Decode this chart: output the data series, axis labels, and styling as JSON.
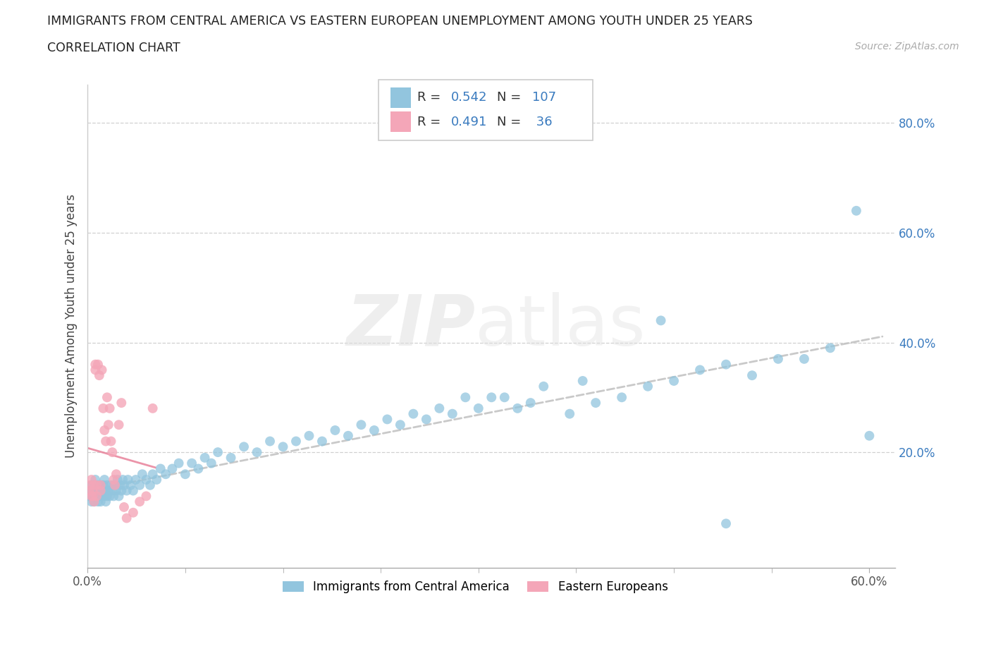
{
  "title": "IMMIGRANTS FROM CENTRAL AMERICA VS EASTERN EUROPEAN UNEMPLOYMENT AMONG YOUTH UNDER 25 YEARS",
  "subtitle": "CORRELATION CHART",
  "source": "Source: ZipAtlas.com",
  "ylabel": "Unemployment Among Youth under 25 years",
  "legend_label_1": "Immigrants from Central America",
  "legend_label_2": "Eastern Europeans",
  "r1": 0.542,
  "n1": 107,
  "r2": 0.491,
  "n2": 36,
  "color_blue": "#92c5de",
  "color_pink": "#f4a6b8",
  "text_color": "#3a7bbf",
  "label_color": "#333333",
  "trendline_blue_color": "#c0c0c0",
  "trendline_pink_color": "#e8829a",
  "xlim": [
    0.0,
    0.62
  ],
  "ylim": [
    -0.01,
    0.87
  ],
  "xtick_vals": [
    0.0,
    0.6
  ],
  "xtick_labels": [
    "0.0%",
    "60.0%"
  ],
  "ytick_vals": [
    0.2,
    0.4,
    0.6,
    0.8
  ],
  "ytick_labels": [
    "20.0%",
    "40.0%",
    "60.0%",
    "80.0%"
  ],
  "blue_x": [
    0.001,
    0.002,
    0.003,
    0.003,
    0.004,
    0.004,
    0.005,
    0.005,
    0.006,
    0.006,
    0.007,
    0.007,
    0.008,
    0.008,
    0.009,
    0.009,
    0.01,
    0.01,
    0.011,
    0.011,
    0.012,
    0.012,
    0.013,
    0.013,
    0.014,
    0.014,
    0.015,
    0.015,
    0.016,
    0.017,
    0.018,
    0.019,
    0.02,
    0.021,
    0.022,
    0.023,
    0.024,
    0.025,
    0.026,
    0.027,
    0.028,
    0.03,
    0.031,
    0.033,
    0.035,
    0.037,
    0.04,
    0.042,
    0.045,
    0.048,
    0.05,
    0.053,
    0.056,
    0.06,
    0.065,
    0.07,
    0.075,
    0.08,
    0.085,
    0.09,
    0.095,
    0.1,
    0.11,
    0.12,
    0.13,
    0.14,
    0.15,
    0.16,
    0.17,
    0.18,
    0.19,
    0.2,
    0.21,
    0.22,
    0.23,
    0.24,
    0.25,
    0.26,
    0.27,
    0.28,
    0.29,
    0.3,
    0.31,
    0.32,
    0.33,
    0.34,
    0.35,
    0.37,
    0.39,
    0.41,
    0.43,
    0.45,
    0.47,
    0.49,
    0.51,
    0.53,
    0.55,
    0.57,
    0.59,
    0.6,
    0.49,
    0.44,
    0.38
  ],
  "blue_y": [
    0.12,
    0.13,
    0.11,
    0.14,
    0.12,
    0.13,
    0.14,
    0.11,
    0.12,
    0.15,
    0.13,
    0.12,
    0.11,
    0.14,
    0.13,
    0.12,
    0.14,
    0.11,
    0.13,
    0.12,
    0.14,
    0.13,
    0.12,
    0.15,
    0.11,
    0.13,
    0.14,
    0.12,
    0.13,
    0.12,
    0.14,
    0.13,
    0.12,
    0.14,
    0.13,
    0.15,
    0.12,
    0.14,
    0.13,
    0.15,
    0.14,
    0.13,
    0.15,
    0.14,
    0.13,
    0.15,
    0.14,
    0.16,
    0.15,
    0.14,
    0.16,
    0.15,
    0.17,
    0.16,
    0.17,
    0.18,
    0.16,
    0.18,
    0.17,
    0.19,
    0.18,
    0.2,
    0.19,
    0.21,
    0.2,
    0.22,
    0.21,
    0.22,
    0.23,
    0.22,
    0.24,
    0.23,
    0.25,
    0.24,
    0.26,
    0.25,
    0.27,
    0.26,
    0.28,
    0.27,
    0.3,
    0.28,
    0.3,
    0.3,
    0.28,
    0.29,
    0.32,
    0.27,
    0.29,
    0.3,
    0.32,
    0.33,
    0.35,
    0.36,
    0.34,
    0.37,
    0.37,
    0.39,
    0.64,
    0.23,
    0.07,
    0.44,
    0.33
  ],
  "pink_x": [
    0.001,
    0.002,
    0.003,
    0.003,
    0.004,
    0.004,
    0.005,
    0.005,
    0.006,
    0.006,
    0.007,
    0.007,
    0.008,
    0.009,
    0.01,
    0.01,
    0.011,
    0.012,
    0.013,
    0.014,
    0.015,
    0.016,
    0.017,
    0.018,
    0.019,
    0.02,
    0.021,
    0.022,
    0.024,
    0.026,
    0.028,
    0.03,
    0.035,
    0.04,
    0.045,
    0.05
  ],
  "pink_y": [
    0.13,
    0.14,
    0.12,
    0.15,
    0.13,
    0.12,
    0.14,
    0.11,
    0.35,
    0.36,
    0.12,
    0.14,
    0.36,
    0.34,
    0.14,
    0.13,
    0.35,
    0.28,
    0.24,
    0.22,
    0.3,
    0.25,
    0.28,
    0.22,
    0.2,
    0.15,
    0.14,
    0.16,
    0.25,
    0.29,
    0.1,
    0.08,
    0.09,
    0.11,
    0.12,
    0.28
  ]
}
